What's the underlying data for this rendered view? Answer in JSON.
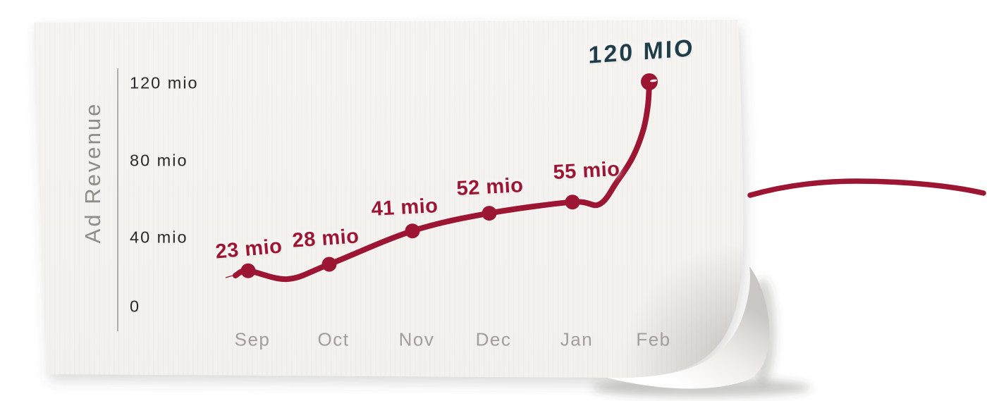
{
  "paper": {
    "color": "#f5f3f0"
  },
  "chart_data": {
    "type": "line",
    "title": "",
    "xlabel": "",
    "ylabel": "Ad Revenue",
    "categories": [
      "Sep",
      "Oct",
      "Nov",
      "Dec",
      "Jan",
      "Feb"
    ],
    "series": [
      {
        "name": "Ad Revenue",
        "values": [
          23,
          28,
          41,
          52,
          55,
          120
        ]
      }
    ],
    "point_labels": [
      "23 mio",
      "28 mio",
      "41 mio",
      "52 mio",
      "55 mio",
      "120 MIO"
    ],
    "y_ticks": [
      {
        "value": 120,
        "label": "120 mio"
      },
      {
        "value": 80,
        "label": "80 mio"
      },
      {
        "value": 40,
        "label": "40 mio"
      },
      {
        "value": 0,
        "label": "0"
      }
    ],
    "ylim": [
      0,
      132
    ],
    "grid": false,
    "legend": "none",
    "line_color": "#9c1634",
    "point_color": "#9c1634",
    "data_label_color": "#9c1634",
    "highlight_label_color": "#1f3e49",
    "axis_color": "#b3b0ac",
    "tick_label_color": "#2b2927",
    "category_label_color": "#a19e9b",
    "ylabel_color": "#8f8d8a"
  },
  "decorations": {
    "offpage_stroke_color": "#9c1634"
  }
}
